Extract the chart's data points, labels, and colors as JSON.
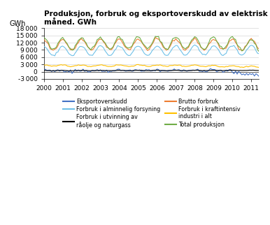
{
  "title": "Produksjon, forbruk og eksportoverskudd av elektrisk kraft per\nmåned. GWh",
  "ylabel": "GWh",
  "ylim": [
    -3000,
    18000
  ],
  "yticks": [
    -3000,
    0,
    3000,
    6000,
    9000,
    12000,
    15000,
    18000
  ],
  "xlim": [
    0,
    132
  ],
  "xtick_labels": [
    "2000",
    "2001",
    "2002",
    "2003",
    "2004",
    "2005",
    "2006",
    "2007",
    "2008",
    "2009",
    "2010",
    "2011"
  ],
  "colors": {
    "eksport": "#4472C4",
    "forbruk_alm": "#70C1E8",
    "forbruk_utvinning": "#000000",
    "brutto_forbruk": "#ED7D31",
    "forbruk_kraft": "#FFC000",
    "total_prod": "#70AD47"
  },
  "legend": [
    {
      "label": "Eksportoverskudd",
      "color": "#4472C4"
    },
    {
      "label": "Forbruk i alminnelig forsyning",
      "color": "#70C1E8"
    },
    {
      "label": "Forbruk i utvinning av\nråolje og naturgass",
      "color": "#000000"
    },
    {
      "label": "Brutto forbruk",
      "color": "#ED7D31"
    },
    {
      "label": "Forbruk i kraftintensiv\nindustri i alt",
      "color": "#FFC000"
    },
    {
      "label": "Total produksjon",
      "color": "#70AD47"
    }
  ]
}
